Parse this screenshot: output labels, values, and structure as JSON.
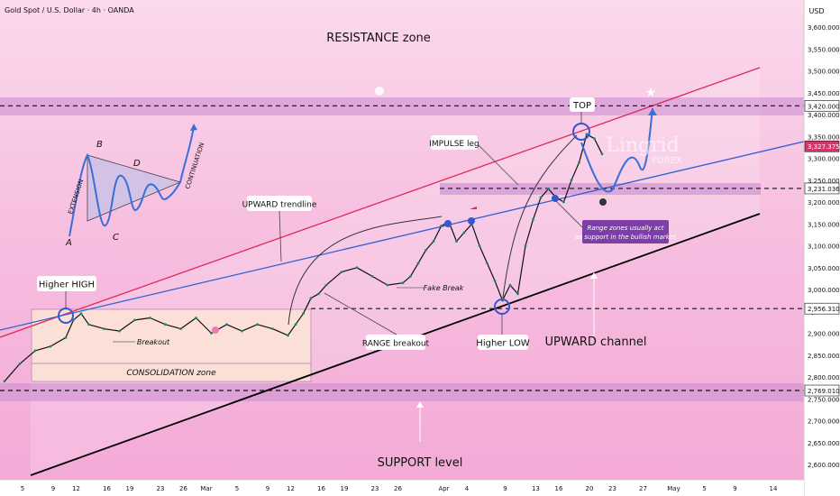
{
  "header": {
    "symbol": "Gold Spot / U.S. Dollar · 4h · OANDA",
    "currency": "USD"
  },
  "chart_data": {
    "type": "line",
    "title": "Gold Spot / U.S. Dollar · 4h · OANDA",
    "y_unit": "USD",
    "ylim": [
      2560,
      3680
    ],
    "y_ticks": [
      2600,
      2650,
      2700,
      2750,
      2800,
      2850,
      2900,
      2950,
      3000,
      3050,
      3100,
      3150,
      3200,
      3250,
      3300,
      3350,
      3400,
      3450,
      3500,
      3550,
      3600
    ],
    "y_tick_labels": [
      "2,600.000",
      "2,650.000",
      "2,700.000",
      "2,750.000",
      "2,800.000",
      "2,850.000",
      "2,900.000",
      "2,950.000",
      "3,000.000",
      "3,050.000",
      "3,100.000",
      "3,150.000",
      "3,200.000",
      "3,250.000",
      "3,300.000",
      "3,350.000",
      "3,400.000",
      "3,450.000",
      "3,500.000",
      "3,550.000",
      "3,600.000"
    ],
    "x_ticks": [
      {
        "label": "5",
        "t": 5
      },
      {
        "label": "9",
        "t": 9
      },
      {
        "label": "12",
        "t": 12
      },
      {
        "label": "16",
        "t": 16
      },
      {
        "label": "19",
        "t": 19
      },
      {
        "label": "23",
        "t": 23
      },
      {
        "label": "26",
        "t": 26
      },
      {
        "label": "Mar",
        "t": 29
      },
      {
        "label": "5",
        "t": 33
      },
      {
        "label": "9",
        "t": 37
      },
      {
        "label": "12",
        "t": 40
      },
      {
        "label": "16",
        "t": 44
      },
      {
        "label": "19",
        "t": 47
      },
      {
        "label": "23",
        "t": 51
      },
      {
        "label": "26",
        "t": 54
      },
      {
        "label": "Apr",
        "t": 60
      },
      {
        "label": "4",
        "t": 63
      },
      {
        "label": "9",
        "t": 68
      },
      {
        "label": "13",
        "t": 72
      },
      {
        "label": "16",
        "t": 75
      },
      {
        "label": "20",
        "t": 79
      },
      {
        "label": "23",
        "t": 82
      },
      {
        "label": "27",
        "t": 86
      },
      {
        "label": "May",
        "t": 90
      },
      {
        "label": "5",
        "t": 94
      },
      {
        "label": "9",
        "t": 98
      },
      {
        "label": "14",
        "t": 103
      }
    ],
    "price_labels": [
      {
        "value": 3420.0,
        "text": "3,420.000",
        "color": "#ffffff",
        "text_color": "#111111"
      },
      {
        "value": 3327.375,
        "text": "3,327.375",
        "color": "#e0306a",
        "text_color": "#ffffff"
      },
      {
        "value": 3231.036,
        "text": "3,231.036",
        "color": "#ffffff",
        "text_color": "#111111"
      },
      {
        "value": 2956.31,
        "text": "2,956.310",
        "color": "#ffffff",
        "text_color": "#111111"
      },
      {
        "value": 2769.01,
        "text": "2,769.010",
        "color": "#ffffff",
        "text_color": "#111111"
      }
    ],
    "series": [
      {
        "color": "#111111",
        "x": [
          0,
          2,
          4,
          6,
          8,
          9,
          10,
          11,
          13,
          15,
          17,
          19,
          21,
          23,
          25,
          27,
          29,
          31,
          33,
          35,
          37,
          38,
          39,
          40,
          41,
          42,
          44,
          46,
          48,
          50,
          52,
          53,
          54,
          55,
          56,
          57,
          58,
          59,
          60,
          61,
          62,
          63,
          64,
          65,
          66,
          67,
          68,
          69,
          70,
          71,
          72,
          73,
          74,
          75,
          76,
          77,
          78
        ],
        "y": [
          2790,
          2830,
          2860,
          2870,
          2890,
          2930,
          2945,
          2920,
          2910,
          2905,
          2930,
          2935,
          2920,
          2910,
          2935,
          2900,
          2920,
          2905,
          2920,
          2910,
          2895,
          2920,
          2945,
          2980,
          2990,
          3010,
          3040,
          3050,
          3030,
          3010,
          3015,
          3030,
          3060,
          3090,
          3110,
          3145,
          3155,
          3110,
          3130,
          3150,
          3100,
          3060,
          3020,
          2975,
          3010,
          2990,
          3100,
          3160,
          3210,
          3230,
          3210,
          3200,
          3250,
          3290,
          3355,
          3345,
          3310
        ]
      }
    ],
    "levels": [
      3420.0,
      3231.036,
      2956.31,
      2769.01
    ],
    "zones": [
      {
        "name": "RESISTANCE zone",
        "from": 3400,
        "to": 3440
      },
      {
        "name": "range zone",
        "from": 3220,
        "to": 3245
      },
      {
        "name": "SUPPORT level",
        "from": 2750,
        "to": 2790
      },
      {
        "name": "CONSOLIDATION zone",
        "from": 2820,
        "to": 2955
      }
    ],
    "annotations": {
      "resistance_zone": "RESISTANCE zone",
      "support_level": "SUPPORT level",
      "higher_high": "Higher HIGH",
      "higher_low": "Higher LOW",
      "top": "TOP",
      "impulse_leg": "IMPULSE leg",
      "upward_trendline": "UPWARD trendline",
      "range_breakout": "RANGE breakout",
      "upward_channel": "UPWARD channel",
      "consolidation_zone": "CONSOLIDATION zone",
      "breakout": "Breakout",
      "fake_break": "Fake Break",
      "range_note": "Range zones usually act as support in the bullish market",
      "triangle_labels": [
        "A",
        "B",
        "C",
        "D"
      ],
      "extension": "EXTENSION",
      "continuation": "CONTINUATION"
    },
    "watermark": {
      "main": "Lingrid",
      "sub": "FOREX"
    },
    "grid": false
  }
}
